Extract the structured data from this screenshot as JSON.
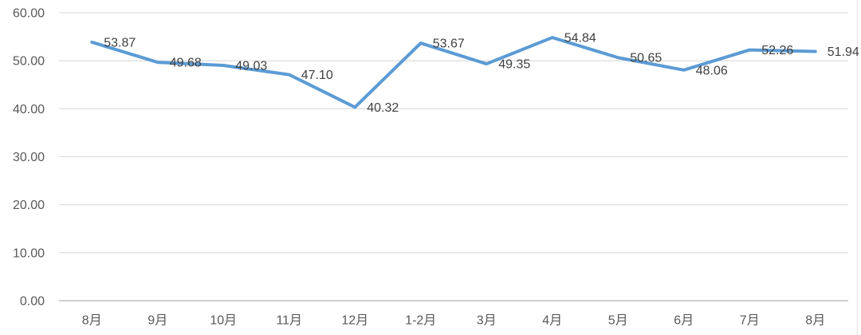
{
  "chart_data": {
    "type": "line",
    "title": "",
    "xlabel": "",
    "ylabel": "",
    "categories": [
      "8月",
      "9月",
      "10月",
      "11月",
      "12月",
      "1-2月",
      "3月",
      "4月",
      "5月",
      "6月",
      "7月",
      "8月"
    ],
    "values": [
      53.87,
      49.68,
      49.03,
      47.1,
      40.32,
      53.67,
      49.35,
      54.84,
      50.65,
      48.06,
      52.26,
      51.94
    ],
    "data_labels": [
      "53.87",
      "49.68",
      "49.03",
      "47.10",
      "40.32",
      "53.67",
      "49.35",
      "54.84",
      "50.65",
      "48.06",
      "52.26",
      "51.94"
    ],
    "ylim": [
      0,
      60
    ],
    "ytick_interval": 10,
    "ytick_labels": [
      "0.00",
      "10.00",
      "20.00",
      "30.00",
      "40.00",
      "50.00",
      "60.00"
    ],
    "grid": true,
    "legend": "none",
    "data_labels_visible": true,
    "colors": {
      "line": "#5B9BD5",
      "data_label": "#404040",
      "axis_label": "#595959",
      "gridline": "#D9D9D9",
      "axis_line": "#BFBFBF",
      "right_border": "#E8E8E8",
      "background": "#FFFFFF"
    }
  }
}
